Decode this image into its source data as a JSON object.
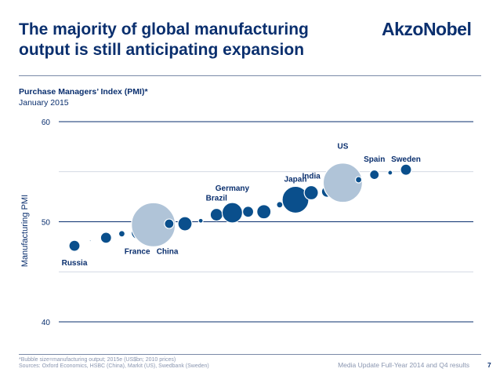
{
  "slide": {
    "title": "The majority of global manufacturing\noutput is still anticipating expansion",
    "logo": "AkzoNobel",
    "footnote": "*Bubble size=manufacturing output; 2015e (US$bn; 2010 prices)",
    "sources": "Sources: Oxford Economics, HSBC (China), Markit (US), Swedbank (Sweden)",
    "footer": "Media Update Full-Year 2014 and Q4 results",
    "page_number": "7"
  },
  "chart_data": {
    "type": "scatter",
    "title": "Purchase Managers’ Index (PMI)*",
    "subtitle": "January 2015",
    "ylabel": "Manufacturing PMI",
    "ylim": [
      40,
      60
    ],
    "yticks": [
      40,
      50,
      60
    ],
    "grid": true,
    "colors": {
      "standard": "#0a4f8c",
      "large": "#b0c4d8",
      "grid": "#0a2f6e"
    },
    "points": [
      {
        "label": "Russia",
        "value": 47.6,
        "size": 7
      },
      {
        "label": "",
        "value": 48.1,
        "size": 1
      },
      {
        "label": "",
        "value": 48.4,
        "size": 7
      },
      {
        "label": "",
        "value": 48.8,
        "size": 4
      },
      {
        "label": "France",
        "value": 48.9,
        "size": 8
      },
      {
        "label": "China",
        "value": 49.7,
        "size": 28,
        "style": "large"
      },
      {
        "label": "",
        "value": 49.8,
        "size": 6
      },
      {
        "label": "",
        "value": 49.8,
        "size": 9
      },
      {
        "label": "",
        "value": 50.1,
        "size": 3
      },
      {
        "label": "Brazil",
        "value": 50.7,
        "size": 8
      },
      {
        "label": "Germany",
        "value": 50.9,
        "size": 13
      },
      {
        "label": "",
        "value": 51.0,
        "size": 7
      },
      {
        "label": "",
        "value": 51.0,
        "size": 9
      },
      {
        "label": "",
        "value": 51.7,
        "size": 4
      },
      {
        "label": "Japan",
        "value": 52.2,
        "size": 17
      },
      {
        "label": "India",
        "value": 52.9,
        "size": 9
      },
      {
        "label": "",
        "value": 53.0,
        "size": 7
      },
      {
        "label": "US",
        "value": 53.9,
        "size": 25,
        "style": "large"
      },
      {
        "label": "",
        "value": 54.2,
        "size": 4
      },
      {
        "label": "Spain",
        "value": 54.7,
        "size": 6
      },
      {
        "label": "",
        "value": 54.9,
        "size": 3
      },
      {
        "label": "Sweden",
        "value": 55.2,
        "size": 7
      }
    ]
  }
}
